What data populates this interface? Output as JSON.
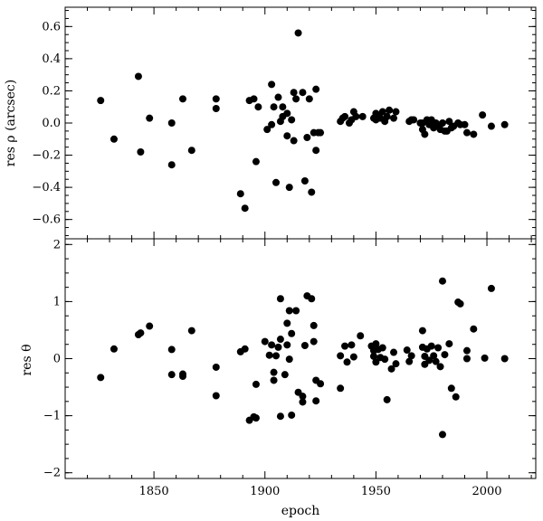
{
  "chart_data": [
    {
      "type": "scatter",
      "ylabel": "res ρ (arcsec)",
      "xlim": [
        1810,
        2022
      ],
      "ylim": [
        -0.72,
        0.72
      ],
      "yticks": [
        -0.6,
        -0.4,
        -0.2,
        0.0,
        0.2,
        0.4,
        0.6
      ],
      "ytick_labels": [
        "−0.6",
        "−0.4",
        "−0.2",
        "0.0",
        "0.2",
        "0.4",
        "0.6"
      ],
      "x_tick_labels_shown": false,
      "points": [
        [
          1826,
          0.14
        ],
        [
          1832,
          -0.1
        ],
        [
          1843,
          0.29
        ],
        [
          1844,
          -0.18
        ],
        [
          1848,
          0.03
        ],
        [
          1858,
          0.0
        ],
        [
          1858,
          -0.26
        ],
        [
          1863,
          0.15
        ],
        [
          1867,
          -0.17
        ],
        [
          1878,
          0.15
        ],
        [
          1878,
          0.09
        ],
        [
          1889,
          -0.44
        ],
        [
          1891,
          -0.53
        ],
        [
          1893,
          0.14
        ],
        [
          1895,
          0.15
        ],
        [
          1896,
          -0.24
        ],
        [
          1897,
          0.1
        ],
        [
          1901,
          -0.04
        ],
        [
          1903,
          0.24
        ],
        [
          1903,
          -0.01
        ],
        [
          1904,
          0.1
        ],
        [
          1905,
          -0.37
        ],
        [
          1906,
          0.16
        ],
        [
          1907,
          0.01
        ],
        [
          1908,
          0.1
        ],
        [
          1908,
          0.04
        ],
        [
          1910,
          0.06
        ],
        [
          1910,
          -0.08
        ],
        [
          1911,
          -0.4
        ],
        [
          1912,
          0.02
        ],
        [
          1913,
          0.19
        ],
        [
          1913,
          -0.11
        ],
        [
          1914,
          0.15
        ],
        [
          1915,
          0.56
        ],
        [
          1917,
          0.19
        ],
        [
          1918,
          -0.36
        ],
        [
          1919,
          -0.09
        ],
        [
          1920,
          0.15
        ],
        [
          1921,
          -0.43
        ],
        [
          1922,
          -0.06
        ],
        [
          1923,
          0.21
        ],
        [
          1923,
          -0.17
        ],
        [
          1924,
          -0.06
        ],
        [
          1925,
          -0.06
        ],
        [
          1934,
          0.01
        ],
        [
          1935,
          0.03
        ],
        [
          1936,
          0.04
        ],
        [
          1938,
          0.0
        ],
        [
          1939,
          0.02
        ],
        [
          1940,
          0.07
        ],
        [
          1941,
          0.04
        ],
        [
          1944,
          0.04
        ],
        [
          1949,
          0.03
        ],
        [
          1950,
          0.06
        ],
        [
          1950,
          0.02
        ],
        [
          1951,
          0.05
        ],
        [
          1952,
          0.03
        ],
        [
          1953,
          0.07
        ],
        [
          1954,
          0.01
        ],
        [
          1955,
          0.04
        ],
        [
          1956,
          0.08
        ],
        [
          1958,
          0.03
        ],
        [
          1959,
          0.07
        ],
        [
          1965,
          0.01
        ],
        [
          1966,
          0.02
        ],
        [
          1967,
          0.02
        ],
        [
          1970,
          0.0
        ],
        [
          1971,
          0.0
        ],
        [
          1971,
          -0.04
        ],
        [
          1972,
          -0.07
        ],
        [
          1973,
          0.02
        ],
        [
          1974,
          -0.01
        ],
        [
          1975,
          0.02
        ],
        [
          1976,
          -0.03
        ],
        [
          1977,
          0.0
        ],
        [
          1978,
          -0.02
        ],
        [
          1979,
          -0.04
        ],
        [
          1980,
          0.0
        ],
        [
          1981,
          -0.05
        ],
        [
          1982,
          -0.05
        ],
        [
          1983,
          0.01
        ],
        [
          1984,
          -0.03
        ],
        [
          1985,
          -0.02
        ],
        [
          1987,
          0.0
        ],
        [
          1988,
          -0.01
        ],
        [
          1990,
          -0.01
        ],
        [
          1991,
          -0.06
        ],
        [
          1994,
          -0.07
        ],
        [
          1998,
          0.05
        ],
        [
          2002,
          -0.02
        ],
        [
          2008,
          -0.01
        ]
      ]
    },
    {
      "type": "scatter",
      "xlabel": "epoch",
      "ylabel": "res θ",
      "xlim": [
        1810,
        2022
      ],
      "ylim": [
        -2.1,
        2.1
      ],
      "xticks": [
        1850,
        1900,
        1950,
        2000
      ],
      "xtick_labels": [
        "1850",
        "1900",
        "1950",
        "2000"
      ],
      "yticks": [
        -2,
        -1,
        0,
        1,
        2
      ],
      "ytick_labels": [
        "−2",
        "−1",
        "0",
        "1",
        "2"
      ],
      "points": [
        [
          1826,
          -0.33
        ],
        [
          1832,
          0.17
        ],
        [
          1843,
          0.42
        ],
        [
          1844,
          0.45
        ],
        [
          1848,
          0.57
        ],
        [
          1858,
          0.16
        ],
        [
          1858,
          -0.28
        ],
        [
          1863,
          -0.27
        ],
        [
          1863,
          -0.31
        ],
        [
          1867,
          0.49
        ],
        [
          1878,
          -0.15
        ],
        [
          1878,
          -0.65
        ],
        [
          1889,
          0.12
        ],
        [
          1891,
          0.17
        ],
        [
          1893,
          -1.08
        ],
        [
          1895,
          -1.02
        ],
        [
          1896,
          -1.04
        ],
        [
          1896,
          -0.45
        ],
        [
          1900,
          0.3
        ],
        [
          1902,
          0.06
        ],
        [
          1903,
          0.24
        ],
        [
          1904,
          -0.24
        ],
        [
          1904,
          -0.38
        ],
        [
          1905,
          0.05
        ],
        [
          1906,
          0.2
        ],
        [
          1907,
          1.05
        ],
        [
          1907,
          0.34
        ],
        [
          1907,
          -1.01
        ],
        [
          1909,
          -0.28
        ],
        [
          1910,
          0.62
        ],
        [
          1910,
          0.24
        ],
        [
          1911,
          0.84
        ],
        [
          1911,
          -0.01
        ],
        [
          1912,
          0.44
        ],
        [
          1912,
          -0.99
        ],
        [
          1914,
          0.84
        ],
        [
          1915,
          -0.59
        ],
        [
          1917,
          -0.76
        ],
        [
          1917,
          -0.66
        ],
        [
          1918,
          0.23
        ],
        [
          1919,
          1.1
        ],
        [
          1921,
          1.05
        ],
        [
          1922,
          0.3
        ],
        [
          1922,
          0.58
        ],
        [
          1923,
          -0.38
        ],
        [
          1923,
          -0.74
        ],
        [
          1925,
          -0.44
        ],
        [
          1934,
          0.05
        ],
        [
          1934,
          -0.52
        ],
        [
          1936,
          0.22
        ],
        [
          1937,
          -0.06
        ],
        [
          1939,
          0.24
        ],
        [
          1940,
          0.03
        ],
        [
          1943,
          0.4
        ],
        [
          1948,
          0.22
        ],
        [
          1949,
          0.14
        ],
        [
          1949,
          0.04
        ],
        [
          1950,
          0.26
        ],
        [
          1950,
          -0.06
        ],
        [
          1951,
          0.16
        ],
        [
          1952,
          0.02
        ],
        [
          1953,
          0.19
        ],
        [
          1954,
          -0.01
        ],
        [
          1955,
          -0.72
        ],
        [
          1957,
          -0.18
        ],
        [
          1958,
          0.11
        ],
        [
          1959,
          -0.09
        ],
        [
          1964,
          0.15
        ],
        [
          1965,
          -0.05
        ],
        [
          1966,
          0.05
        ],
        [
          1971,
          0.2
        ],
        [
          1971,
          0.49
        ],
        [
          1972,
          -0.1
        ],
        [
          1972,
          0.04
        ],
        [
          1973,
          0.17
        ],
        [
          1974,
          -0.03
        ],
        [
          1975,
          0.22
        ],
        [
          1976,
          0.05
        ],
        [
          1977,
          -0.05
        ],
        [
          1978,
          0.19
        ],
        [
          1979,
          -0.14
        ],
        [
          1980,
          1.36
        ],
        [
          1980,
          -1.33
        ],
        [
          1981,
          0.07
        ],
        [
          1983,
          0.26
        ],
        [
          1984,
          -0.52
        ],
        [
          1986,
          -0.67
        ],
        [
          1987,
          0.99
        ],
        [
          1988,
          0.96
        ],
        [
          1991,
          0.14
        ],
        [
          1991,
          0.0
        ],
        [
          1994,
          0.52
        ],
        [
          1999,
          0.01
        ],
        [
          2002,
          1.23
        ],
        [
          2008,
          0.0
        ]
      ]
    }
  ]
}
